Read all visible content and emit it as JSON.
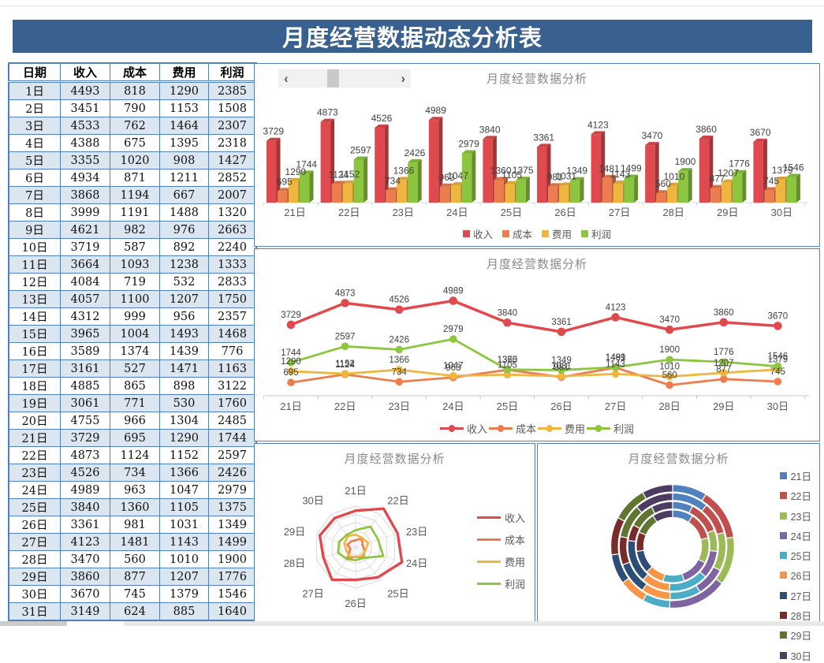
{
  "header": {
    "title": "月度经营数据动态分析表"
  },
  "scrollbar": {
    "left_arrow": "‹",
    "right_arrow": "›"
  },
  "colors": {
    "banner": "#38618F",
    "table_border": "#4F81BD",
    "row_alt": "#DCE6F1",
    "panel_border": "#4F81BD",
    "chart_title": "#8A8A8A",
    "axis_label": "#595959",
    "data_label": "#3F3F3F"
  },
  "table": {
    "columns": [
      "日期",
      "收入",
      "成本",
      "费用",
      "利润"
    ],
    "rows": [
      [
        "1日",
        4493,
        818,
        1290,
        2385
      ],
      [
        "2日",
        3451,
        790,
        1153,
        1508
      ],
      [
        "3日",
        4533,
        762,
        1464,
        2307
      ],
      [
        "4日",
        4388,
        675,
        1395,
        2318
      ],
      [
        "5日",
        3355,
        1020,
        908,
        1427
      ],
      [
        "6日",
        4934,
        871,
        1211,
        2852
      ],
      [
        "7日",
        3868,
        1194,
        667,
        2007
      ],
      [
        "8日",
        3999,
        1191,
        1488,
        1320
      ],
      [
        "9日",
        4621,
        982,
        976,
        2663
      ],
      [
        "10日",
        3719,
        587,
        892,
        2240
      ],
      [
        "11日",
        3664,
        1093,
        1238,
        1333
      ],
      [
        "12日",
        4084,
        719,
        532,
        2833
      ],
      [
        "13日",
        4057,
        1100,
        1207,
        1750
      ],
      [
        "14日",
        4312,
        999,
        956,
        2357
      ],
      [
        "15日",
        3965,
        1004,
        1493,
        1468
      ],
      [
        "16日",
        3589,
        1374,
        1439,
        776
      ],
      [
        "17日",
        3161,
        527,
        1471,
        1163
      ],
      [
        "18日",
        4885,
        865,
        898,
        3122
      ],
      [
        "19日",
        3061,
        771,
        530,
        1760
      ],
      [
        "20日",
        4755,
        966,
        1304,
        2485
      ],
      [
        "21日",
        3729,
        695,
        1290,
        1744
      ],
      [
        "22日",
        4873,
        1124,
        1152,
        2597
      ],
      [
        "23日",
        4526,
        734,
        1366,
        2426
      ],
      [
        "24日",
        4989,
        963,
        1047,
        2979
      ],
      [
        "25日",
        3840,
        1360,
        1105,
        1375
      ],
      [
        "26日",
        3361,
        981,
        1031,
        1349
      ],
      [
        "27日",
        4123,
        1481,
        1143,
        1499
      ],
      [
        "28日",
        3470,
        560,
        1010,
        1900
      ],
      [
        "29日",
        3860,
        877,
        1207,
        1776
      ],
      [
        "30日",
        3670,
        745,
        1379,
        1546
      ],
      [
        "31日",
        3149,
        624,
        885,
        1640
      ]
    ]
  },
  "chart_data": [
    {
      "type": "bar",
      "title": "月度经营数据分析",
      "categories": [
        "21日",
        "22日",
        "23日",
        "24日",
        "25日",
        "26日",
        "27日",
        "28日",
        "29日",
        "30日"
      ],
      "series": [
        {
          "name": "收入",
          "color": "#E04A4E",
          "values": [
            3729,
            4873,
            4526,
            4989,
            3840,
            3361,
            4123,
            3470,
            3860,
            3670
          ]
        },
        {
          "name": "成本",
          "color": "#ED7D4F",
          "values": [
            695,
            1124,
            734,
            963,
            1360,
            981,
            1481,
            560,
            877,
            745
          ]
        },
        {
          "name": "费用",
          "color": "#EFB63F",
          "values": [
            1290,
            1152,
            1366,
            1047,
            1105,
            1031,
            1143,
            1010,
            1207,
            1379
          ]
        },
        {
          "name": "利润",
          "color": "#8CC63F",
          "values": [
            1744,
            2597,
            2426,
            2979,
            1375,
            1349,
            1499,
            1900,
            1776,
            1546
          ]
        }
      ],
      "ylim": [
        0,
        5000
      ],
      "grid": false,
      "data_labels": true,
      "legend_position": "bottom",
      "style": "3d-column"
    },
    {
      "type": "line",
      "title": "月度经营数据分析",
      "categories": [
        "21日",
        "22日",
        "23日",
        "24日",
        "25日",
        "26日",
        "27日",
        "28日",
        "29日",
        "30日"
      ],
      "series": [
        {
          "name": "收入",
          "color": "#E04A4E",
          "values": [
            3729,
            4873,
            4526,
            4989,
            3840,
            3361,
            4123,
            3470,
            3860,
            3670
          ]
        },
        {
          "name": "成本",
          "color": "#ED7D4F",
          "values": [
            695,
            1124,
            734,
            963,
            1360,
            981,
            1481,
            560,
            877,
            745
          ]
        },
        {
          "name": "费用",
          "color": "#EFB63F",
          "values": [
            1290,
            1152,
            1366,
            1047,
            1105,
            1031,
            1143,
            1010,
            1207,
            1379
          ]
        },
        {
          "name": "利润",
          "color": "#8CC63F",
          "values": [
            1744,
            2597,
            2426,
            2979,
            1375,
            1349,
            1499,
            1900,
            1776,
            1546
          ]
        }
      ],
      "ylim": [
        0,
        5000
      ],
      "grid": false,
      "data_labels": true,
      "legend_position": "bottom",
      "marker": "circle"
    },
    {
      "type": "radar",
      "title": "月度经营数据分析",
      "categories": [
        "21日",
        "22日",
        "23日",
        "24日",
        "25日",
        "26日",
        "27日",
        "28日",
        "29日",
        "30日"
      ],
      "series": [
        {
          "name": "收入",
          "color": "#E04A4E",
          "values": [
            3729,
            4873,
            4526,
            4989,
            3840,
            3361,
            4123,
            3470,
            3860,
            3670
          ]
        },
        {
          "name": "成本",
          "color": "#ED7D4F",
          "values": [
            695,
            1124,
            734,
            963,
            1360,
            981,
            1481,
            560,
            877,
            745
          ]
        },
        {
          "name": "费用",
          "color": "#EFB63F",
          "values": [
            1290,
            1152,
            1366,
            1047,
            1105,
            1031,
            1143,
            1010,
            1207,
            1379
          ]
        },
        {
          "name": "利润",
          "color": "#8CC63F",
          "values": [
            1744,
            2597,
            2426,
            2979,
            1375,
            1349,
            1499,
            1900,
            1776,
            1546
          ]
        }
      ],
      "rings": 5,
      "legend_position": "right"
    },
    {
      "type": "donut",
      "title": "月度经营数据分析",
      "categories": [
        "21日",
        "22日",
        "23日",
        "24日",
        "25日",
        "26日",
        "27日",
        "28日",
        "29日",
        "30日"
      ],
      "series": [
        {
          "name": "收入",
          "values": [
            3729,
            4873,
            4526,
            4989,
            3840,
            3361,
            4123,
            3470,
            3860,
            3670
          ]
        },
        {
          "name": "成本",
          "values": [
            695,
            1124,
            734,
            963,
            1360,
            981,
            1481,
            560,
            877,
            745
          ]
        },
        {
          "name": "费用",
          "values": [
            1290,
            1152,
            1366,
            1047,
            1105,
            1031,
            1143,
            1010,
            1207,
            1379
          ]
        },
        {
          "name": "利润",
          "values": [
            1744,
            2597,
            2426,
            2979,
            1375,
            1349,
            1499,
            1900,
            1776,
            1546
          ]
        }
      ],
      "ring_order": "inner-to-outer",
      "point_colors": [
        "#4F81BD",
        "#C0504D",
        "#9BBB59",
        "#8064A2",
        "#4BACC6",
        "#F79646",
        "#2C4D75",
        "#772C2A",
        "#5F7530",
        "#4D3B62"
      ],
      "legend_position": "right"
    }
  ]
}
